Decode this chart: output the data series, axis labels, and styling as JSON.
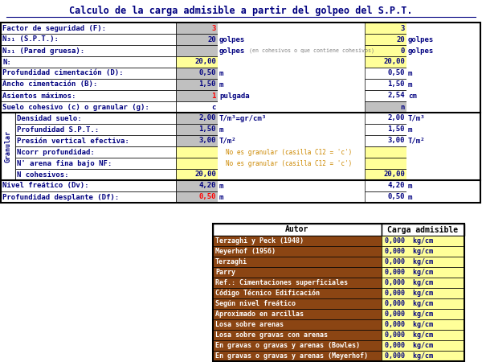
{
  "title": "Calculo de la carga admisible a partir del golpeo del S.P.T.",
  "bg_color": "#ffffff",
  "top_table": {
    "rows": [
      {
        "label": "Factor de seguridad (F):",
        "val1": "3",
        "unit1": "",
        "note": "",
        "val2": "3",
        "unit2": "",
        "val1_bg": "#c0c0c0",
        "val2_bg": "#ffff99",
        "val1_color": "#ff0000",
        "val2_color": "#000080"
      },
      {
        "label": "N₃₁ (S.P.T.):",
        "val1": "20",
        "unit1": "golpes",
        "note": "",
        "val2": "20",
        "unit2": "golpes",
        "val1_bg": "#c0c0c0",
        "val2_bg": "#ffff99",
        "val1_color": "#000080",
        "val2_color": "#000080"
      },
      {
        "label": "N₃₁ (Pared gruesa):",
        "val1": "",
        "unit1": "golpes",
        "note": " (en cohesivos o que contiene cohesivos)",
        "val2": "0",
        "unit2": "golpes",
        "val1_bg": "#c0c0c0",
        "val2_bg": "#ffff99",
        "val1_color": "#ff0000",
        "val2_color": "#000080"
      },
      {
        "label": "N:",
        "val1": "20,00",
        "unit1": "",
        "note": "",
        "val2": "20,00",
        "unit2": "",
        "val1_bg": "#ffff99",
        "val2_bg": "#ffff99",
        "val1_color": "#000080",
        "val2_color": "#000080"
      },
      {
        "label": "Profundidad cimentación (D):",
        "val1": "0,50",
        "unit1": "m",
        "note": "",
        "val2": "0,50",
        "unit2": "m",
        "val1_bg": "#c0c0c0",
        "val2_bg": "#ffffff",
        "val1_color": "#000080",
        "val2_color": "#000080"
      },
      {
        "label": "Ancho cimentación (B):",
        "val1": "1,50",
        "unit1": "m",
        "note": "",
        "val2": "1,50",
        "unit2": "m",
        "val1_bg": "#c0c0c0",
        "val2_bg": "#ffffff",
        "val1_color": "#000080",
        "val2_color": "#000080"
      },
      {
        "label": "Asientos máximos:",
        "val1": "1",
        "unit1": "pulgada",
        "note": "",
        "val2": "2,54",
        "unit2": "cm",
        "val1_bg": "#c0c0c0",
        "val2_bg": "#ffffff",
        "val1_color": "#ff0000",
        "val2_color": "#000080"
      },
      {
        "label": "Suelo cohesivo (c) o granular (g):",
        "val1": "c",
        "unit1": "",
        "note": "",
        "val2": "n",
        "unit2": "",
        "val1_bg": "#ffffff",
        "val2_bg": "#c0c0c0",
        "val1_color": "#000080",
        "val2_color": "#000080"
      }
    ]
  },
  "granular_rows": [
    {
      "label": "Densidad suelo:",
      "val1": "2,00",
      "unit1": "T/m³=gr/cm³",
      "note": "",
      "val2": "2,00",
      "unit2": "T/m³",
      "val1_bg": "#c0c0c0",
      "val2_bg": "#ffffff",
      "val1_color": "#000080",
      "val2_color": "#000080"
    },
    {
      "label": "Profundidad S.P.T.:",
      "val1": "1,50",
      "unit1": "m",
      "note": "",
      "val2": "1,50",
      "unit2": "m",
      "val1_bg": "#c0c0c0",
      "val2_bg": "#ffffff",
      "val1_color": "#000080",
      "val2_color": "#000080"
    },
    {
      "label": "Presión vertical efectiva:",
      "val1": "3,00",
      "unit1": "T/m²",
      "note": "",
      "val2": "3,00",
      "unit2": "T/m²",
      "val1_bg": "#c0c0c0",
      "val2_bg": "#ffffff",
      "val1_color": "#000080",
      "val2_color": "#000080"
    },
    {
      "label": "Ncorr profundidad:",
      "val1": "",
      "unit1": "",
      "note": "No es granular (casilla C12 = 'c')",
      "val2": "",
      "unit2": "",
      "val1_bg": "#ffff99",
      "val2_bg": "#ffff99",
      "val1_color": "#000080",
      "val2_color": "#000080"
    },
    {
      "label": "N' arena fina bajo NF:",
      "val1": "",
      "unit1": "",
      "note": "No es granular (casilla C12 = 'c')",
      "val2": "",
      "unit2": "",
      "val1_bg": "#ffff99",
      "val2_bg": "#ffff99",
      "val1_color": "#000080",
      "val2_color": "#000080"
    },
    {
      "label": "N cohesivos:",
      "val1": "20,00",
      "unit1": "",
      "note": "",
      "val2": "20,00",
      "unit2": "",
      "val1_bg": "#ffff99",
      "val2_bg": "#ffff99",
      "val1_color": "#000080",
      "val2_color": "#000080"
    }
  ],
  "bottom_rows": [
    {
      "label": "Nivel freático (Dv):",
      "val1": "4,20",
      "unit1": "m",
      "note": "",
      "val2": "4,20",
      "unit2": "m",
      "val1_bg": "#c0c0c0",
      "val2_bg": "#ffffff",
      "val1_color": "#000080",
      "val2_color": "#000080"
    },
    {
      "label": "Profundidad desplante (Df):",
      "val1": "0,50",
      "unit1": "m",
      "note": "",
      "val2": "0,50",
      "unit2": "m",
      "val1_bg": "#c0c0c0",
      "val2_bg": "#ffffff",
      "val1_color": "#ff0000",
      "val2_color": "#000080"
    }
  ],
  "result_table": {
    "header": [
      "Autor",
      "Carga admisible"
    ],
    "rows": [
      "Terzaghi y Peck (1948)",
      "Meyerhof (1956)",
      "Terzaghi",
      "Parry",
      "Ref.: Cimentaciones superficiales",
      "Código Técnico Edificación",
      "Según nivel freático",
      "Aproximado en arcillas",
      "Losa sobre arenas",
      "Losa sobre gravas con arenas",
      "En gravas o gravas y arenas (Bowles)",
      "En gravas o gravas y arenas (Meyerhof)"
    ],
    "values": [
      "0,000  kg/cm",
      "0,000  kg/cm",
      "0,000  kg/cm",
      "0,000  kg/cm",
      "0,000  kg/cm",
      "0,000  kg/cm",
      "0,000  kg/cm",
      "0,000  kg/cm",
      "0,000  kg/cm",
      "0,000  kg/cm",
      "0,000  kg/cm",
      "0,000  kg/cm"
    ],
    "row_bg": "#8B4513",
    "row_fg": "#ffffff",
    "val_bg": "#ffff99",
    "val_fg": "#000080",
    "header_bg": "#ffffff",
    "header_fg": "#000000"
  }
}
